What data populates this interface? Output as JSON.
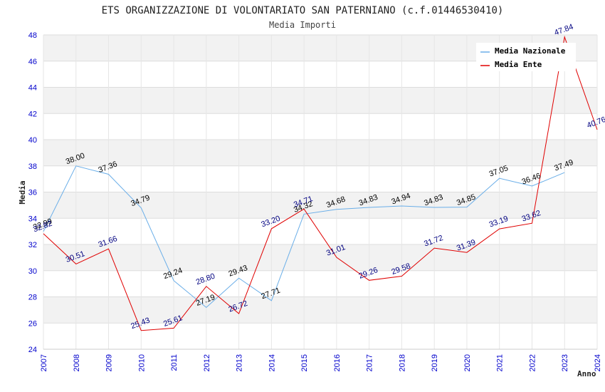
{
  "chart_data": {
    "type": "line",
    "title": "ETS ORGANIZZAZIONE DI VOLONTARIATO SAN PATERNIANO (c.f.01446530410)",
    "subtitle": "Media Importi",
    "xlabel": "Anno",
    "ylabel": "Media",
    "x": [
      "2007",
      "2008",
      "2009",
      "2010",
      "2011",
      "2012",
      "2013",
      "2014",
      "2015",
      "2016",
      "2017",
      "2018",
      "2019",
      "2020",
      "2021",
      "2022",
      "2023",
      "2024"
    ],
    "ylim": [
      24,
      48
    ],
    "yticks": [
      "24",
      "26",
      "28",
      "30",
      "32",
      "34",
      "36",
      "38",
      "40",
      "42",
      "44",
      "46",
      "48"
    ],
    "grid": true,
    "legend_position": "top-right",
    "series": [
      {
        "name": "Media Nazionale",
        "color": "#6aaee8",
        "label_color": "#000000",
        "values": [
          32.99,
          38.0,
          37.36,
          34.79,
          29.24,
          27.19,
          29.43,
          27.71,
          34.32,
          34.68,
          34.83,
          34.94,
          34.83,
          34.85,
          37.05,
          36.46,
          37.49,
          null
        ],
        "labels": [
          "32.99",
          "38.00",
          "37.36",
          "34.79",
          "29.24",
          "27.19",
          "29.43",
          "27.71",
          "34.32",
          "34.68",
          "34.83",
          "34.94",
          "34.83",
          "34.85",
          "37.05",
          "36.46",
          "37.49",
          ""
        ]
      },
      {
        "name": "Media Ente",
        "color": "#e00000",
        "label_color": "#000080",
        "values": [
          32.82,
          30.51,
          31.66,
          25.43,
          25.61,
          28.8,
          26.72,
          33.2,
          34.71,
          31.01,
          29.26,
          29.58,
          31.72,
          31.39,
          33.19,
          33.62,
          47.84,
          40.76
        ],
        "labels": [
          "32.82",
          "30.51",
          "31.66",
          "25.43",
          "25.61",
          "28.80",
          "26.72",
          "33.20",
          "34.71",
          "31.01",
          "29.26",
          "29.58",
          "31.72",
          "31.39",
          "33.19",
          "33.62",
          "47.84",
          "40.76"
        ]
      }
    ]
  }
}
